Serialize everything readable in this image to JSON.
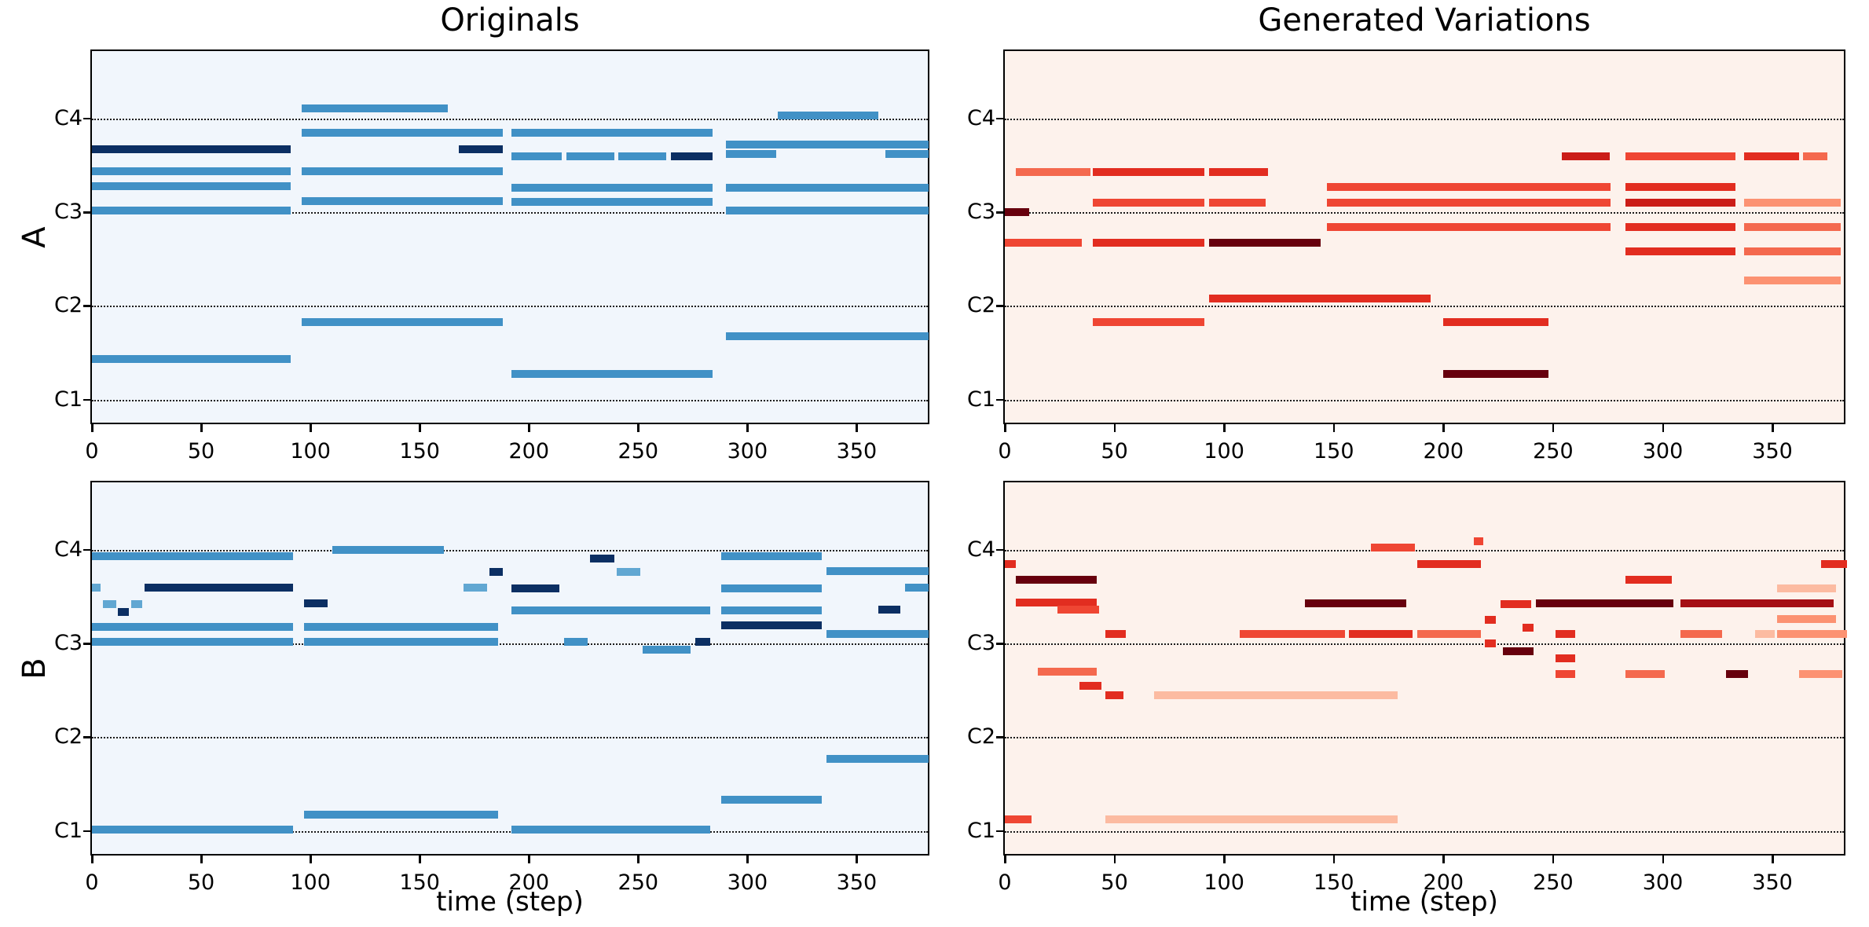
{
  "palette": {
    "blue": "#4191c6",
    "light": "#61a7d2",
    "navy": "#0c2f63",
    "r1": "#fcbba1",
    "r2": "#fc9272",
    "r3": "#f4694e",
    "r4": "#ef4633",
    "r5": "#e22d20",
    "r6": "#cb1d18",
    "r7": "#a50f15",
    "r8": "#67000d",
    "bg_blues": "#f1f6fc",
    "bg_reds": "#fdf2ec",
    "axis": "#000000"
  },
  "chart_data": {
    "type": "piano_roll",
    "description": "2x2 grid of piano-roll note plots. Rows A and B are two pieces; left column shows original sequences (blue notes, shade = velocity), right column shows generated variations (red notes, shade = velocity). Each note is [pitch, start_step, end_step, shade]; pitch is in octave units where C1=1, C2=2, C3=3, C4=4 (one semitone = 1/12).",
    "title_left": "Originals",
    "title_right": "Generated Variations",
    "row_labels": [
      "A",
      "B"
    ],
    "xlabel": "time (step)",
    "x_ticks": [
      0,
      50,
      100,
      150,
      200,
      250,
      300,
      350
    ],
    "y_ticks": [
      {
        "label": "C4",
        "pitch": 4
      },
      {
        "label": "C3",
        "pitch": 3
      },
      {
        "label": "C2",
        "pitch": 2
      },
      {
        "label": "C1",
        "pitch": 1
      }
    ],
    "x_range": [
      0,
      384
    ],
    "y_range_octaves": [
      0.72,
      4.72
    ],
    "grid": "horizontal dotted lines at each C pitch",
    "panels": [
      {
        "id": "A_originals",
        "grid_row": 0,
        "grid_col": 0,
        "style": "blues",
        "notes": [
          [
            3.67,
            0,
            91,
            "navy"
          ],
          [
            3.44,
            0,
            91,
            "blue"
          ],
          [
            3.28,
            0,
            91,
            "blue"
          ],
          [
            3.02,
            0,
            91,
            "blue"
          ],
          [
            1.43,
            0,
            91,
            "blue"
          ],
          [
            4.11,
            96,
            163,
            "blue"
          ],
          [
            3.85,
            96,
            188,
            "blue"
          ],
          [
            3.67,
            168,
            188,
            "navy"
          ],
          [
            3.44,
            96,
            188,
            "blue"
          ],
          [
            3.12,
            96,
            188,
            "blue"
          ],
          [
            1.83,
            96,
            188,
            "blue"
          ],
          [
            3.85,
            192,
            284,
            "blue"
          ],
          [
            3.6,
            192,
            215,
            "blue"
          ],
          [
            3.6,
            217,
            239,
            "blue"
          ],
          [
            3.6,
            241,
            263,
            "blue"
          ],
          [
            3.6,
            265,
            284,
            "navy"
          ],
          [
            3.26,
            192,
            284,
            "blue"
          ],
          [
            3.11,
            192,
            284,
            "blue"
          ],
          [
            1.27,
            192,
            284,
            "blue"
          ],
          [
            4.03,
            314,
            360,
            "blue"
          ],
          [
            3.72,
            290,
            383,
            "blue"
          ],
          [
            3.62,
            290,
            313,
            "blue"
          ],
          [
            3.62,
            363,
            383,
            "blue"
          ],
          [
            3.26,
            290,
            383,
            "blue"
          ],
          [
            3.02,
            290,
            383,
            "blue"
          ],
          [
            1.68,
            290,
            383,
            "blue"
          ]
        ]
      },
      {
        "id": "A_generated",
        "grid_row": 0,
        "grid_col": 1,
        "style": "reds",
        "notes": [
          [
            3.0,
            0,
            11,
            "r8"
          ],
          [
            3.43,
            5,
            39,
            "r3"
          ],
          [
            3.43,
            40,
            91,
            "r5"
          ],
          [
            3.43,
            93,
            120,
            "r5"
          ],
          [
            3.1,
            40,
            91,
            "r4"
          ],
          [
            3.1,
            93,
            119,
            "r4"
          ],
          [
            2.67,
            0,
            35,
            "r4"
          ],
          [
            2.67,
            40,
            91,
            "r5"
          ],
          [
            2.67,
            93,
            144,
            "r8"
          ],
          [
            2.08,
            93,
            194,
            "r5"
          ],
          [
            1.83,
            40,
            91,
            "r4"
          ],
          [
            1.83,
            200,
            248,
            "r5"
          ],
          [
            1.27,
            200,
            248,
            "r8"
          ],
          [
            3.27,
            147,
            276,
            "r4"
          ],
          [
            3.27,
            283,
            333,
            "r5"
          ],
          [
            3.1,
            147,
            276,
            "r4"
          ],
          [
            3.1,
            283,
            333,
            "r6"
          ],
          [
            3.1,
            337,
            381,
            "r2"
          ],
          [
            2.84,
            147,
            276,
            "r4"
          ],
          [
            2.84,
            283,
            333,
            "r5"
          ],
          [
            2.84,
            337,
            381,
            "r3"
          ],
          [
            3.6,
            254,
            276,
            "r6"
          ],
          [
            3.6,
            283,
            333,
            "r4"
          ],
          [
            3.6,
            337,
            362,
            "r5"
          ],
          [
            3.6,
            364,
            375,
            "r3"
          ],
          [
            2.58,
            283,
            333,
            "r5"
          ],
          [
            2.58,
            337,
            381,
            "r3"
          ],
          [
            2.27,
            337,
            381,
            "r2"
          ]
        ]
      },
      {
        "id": "B_originals",
        "grid_row": 1,
        "grid_col": 0,
        "style": "blues",
        "notes": [
          [
            3.93,
            0,
            92,
            "blue"
          ],
          [
            3.6,
            0,
            4,
            "light"
          ],
          [
            3.6,
            24,
            92,
            "navy"
          ],
          [
            3.42,
            5,
            11,
            "light"
          ],
          [
            3.34,
            12,
            17,
            "navy"
          ],
          [
            3.42,
            18,
            23,
            "light"
          ],
          [
            3.18,
            0,
            92,
            "blue"
          ],
          [
            3.02,
            0,
            92,
            "blue"
          ],
          [
            1.01,
            0,
            92,
            "blue"
          ],
          [
            4.0,
            110,
            161,
            "blue"
          ],
          [
            3.43,
            97,
            108,
            "navy"
          ],
          [
            3.18,
            97,
            186,
            "blue"
          ],
          [
            3.02,
            97,
            186,
            "blue"
          ],
          [
            1.17,
            97,
            186,
            "blue"
          ],
          [
            3.6,
            170,
            181,
            "light"
          ],
          [
            3.76,
            182,
            188,
            "navy"
          ],
          [
            3.91,
            228,
            239,
            "navy"
          ],
          [
            3.76,
            240,
            251,
            "light"
          ],
          [
            3.59,
            192,
            214,
            "navy"
          ],
          [
            3.35,
            192,
            283,
            "blue"
          ],
          [
            3.02,
            216,
            227,
            "blue"
          ],
          [
            3.02,
            276,
            283,
            "navy"
          ],
          [
            2.93,
            252,
            274,
            "blue"
          ],
          [
            1.01,
            192,
            283,
            "blue"
          ],
          [
            3.93,
            288,
            334,
            "blue"
          ],
          [
            3.59,
            288,
            334,
            "blue"
          ],
          [
            3.35,
            288,
            334,
            "blue"
          ],
          [
            3.19,
            288,
            334,
            "navy"
          ],
          [
            1.33,
            288,
            334,
            "blue"
          ],
          [
            3.77,
            336,
            383,
            "blue"
          ],
          [
            3.6,
            372,
            383,
            "blue"
          ],
          [
            3.36,
            360,
            370,
            "navy"
          ],
          [
            3.1,
            336,
            383,
            "blue"
          ],
          [
            1.77,
            336,
            383,
            "blue"
          ]
        ]
      },
      {
        "id": "B_generated",
        "grid_row": 1,
        "grid_col": 1,
        "style": "reds",
        "notes": [
          [
            3.85,
            0,
            5,
            "r5"
          ],
          [
            3.68,
            5,
            42,
            "r8"
          ],
          [
            3.44,
            5,
            42,
            "r5"
          ],
          [
            3.36,
            24,
            43,
            "r4"
          ],
          [
            2.7,
            15,
            42,
            "r3"
          ],
          [
            2.55,
            34,
            44,
            "r5"
          ],
          [
            3.1,
            46,
            55,
            "r5"
          ],
          [
            2.45,
            46,
            54,
            "r5"
          ],
          [
            1.12,
            0,
            12,
            "r4"
          ],
          [
            1.12,
            46,
            179,
            "r1"
          ],
          [
            2.45,
            68,
            179,
            "r1"
          ],
          [
            3.1,
            107,
            155,
            "r4"
          ],
          [
            3.1,
            157,
            186,
            "r5"
          ],
          [
            3.1,
            188,
            217,
            "r3"
          ],
          [
            3.43,
            137,
            183,
            "r8"
          ],
          [
            4.02,
            167,
            187,
            "r4"
          ],
          [
            3.85,
            188,
            217,
            "r5"
          ],
          [
            4.09,
            214,
            218,
            "r4"
          ],
          [
            3.25,
            219,
            224,
            "r5"
          ],
          [
            3.0,
            219,
            224,
            "r5"
          ],
          [
            3.42,
            226,
            240,
            "r5"
          ],
          [
            3.17,
            236,
            241,
            "r5"
          ],
          [
            2.92,
            227,
            241,
            "r8"
          ],
          [
            3.43,
            242,
            305,
            "r8"
          ],
          [
            3.1,
            251,
            260,
            "r5"
          ],
          [
            2.84,
            251,
            260,
            "r5"
          ],
          [
            2.67,
            251,
            260,
            "r4"
          ],
          [
            3.68,
            283,
            304,
            "r5"
          ],
          [
            2.67,
            283,
            301,
            "r3"
          ],
          [
            3.43,
            308,
            378,
            "r7"
          ],
          [
            3.1,
            308,
            327,
            "r3"
          ],
          [
            3.1,
            342,
            351,
            "r1"
          ],
          [
            3.1,
            352,
            384,
            "r2"
          ],
          [
            2.67,
            329,
            339,
            "r8"
          ],
          [
            3.59,
            352,
            379,
            "r1"
          ],
          [
            3.26,
            352,
            379,
            "r2"
          ],
          [
            2.67,
            362,
            382,
            "r2"
          ],
          [
            3.85,
            372,
            384,
            "r5"
          ]
        ]
      }
    ]
  }
}
